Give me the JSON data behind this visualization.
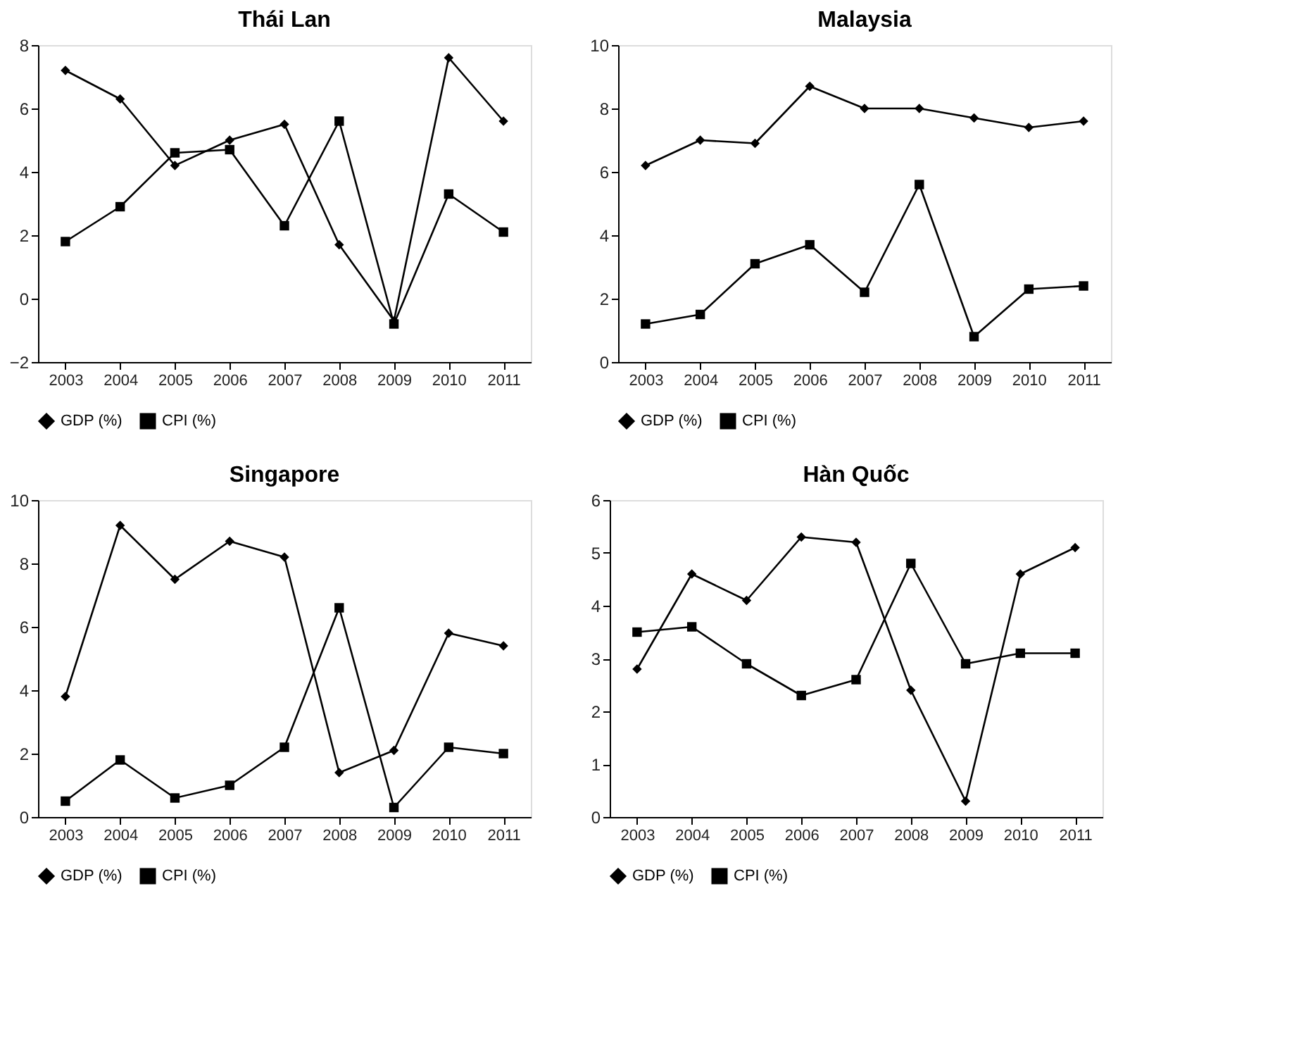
{
  "chart_data": [
    {
      "type": "line",
      "title": "Thái Lan",
      "categories": [
        "2003",
        "2004",
        "2005",
        "2006",
        "2007",
        "2008",
        "2009",
        "2010",
        "2011"
      ],
      "ylim": [
        -2,
        8
      ],
      "yticks": [
        -2,
        0,
        2,
        4,
        6,
        8
      ],
      "grid": false,
      "line_style": "solid",
      "legend": "bottom",
      "series": [
        {
          "name": "GDP (%)",
          "color": "#000000",
          "marker": "diamond",
          "values": [
            7.2,
            6.3,
            4.2,
            5.0,
            5.5,
            1.7,
            -0.7,
            7.6,
            5.6
          ]
        },
        {
          "name": "CPI (%)",
          "color": "#000000",
          "marker": "square",
          "values": [
            1.8,
            2.9,
            4.6,
            4.7,
            2.3,
            5.6,
            -0.8,
            3.3,
            2.1
          ]
        }
      ]
    },
    {
      "type": "line",
      "title": "Malaysia",
      "categories": [
        "2003",
        "2004",
        "2005",
        "2006",
        "2007",
        "2008",
        "2009",
        "2010",
        "2011"
      ],
      "ylim": [
        0,
        10
      ],
      "yticks": [
        0,
        2,
        4,
        6,
        8,
        10
      ],
      "grid": false,
      "line_style": "solid",
      "legend": "bottom",
      "series": [
        {
          "name": "GDP (%)",
          "color": "#000000",
          "marker": "diamond",
          "values": [
            6.2,
            7.0,
            6.9,
            8.7,
            8.0,
            8.0,
            7.7,
            7.4,
            7.6
          ]
        },
        {
          "name": "CPI (%)",
          "color": "#000000",
          "marker": "square",
          "values": [
            1.2,
            1.5,
            3.1,
            3.7,
            2.2,
            5.6,
            0.8,
            2.3,
            2.4
          ]
        }
      ]
    },
    {
      "type": "line",
      "title": "Singapore",
      "categories": [
        "2003",
        "2004",
        "2005",
        "2006",
        "2007",
        "2008",
        "2009",
        "2010",
        "2011"
      ],
      "ylim": [
        0,
        10
      ],
      "yticks": [
        0,
        2,
        4,
        6,
        8,
        10
      ],
      "grid": false,
      "line_style": "solid",
      "legend": "bottom",
      "series": [
        {
          "name": "GDP (%)",
          "color": "#000000",
          "marker": "diamond",
          "values": [
            3.8,
            9.2,
            7.5,
            8.7,
            8.2,
            1.4,
            2.1,
            5.8,
            5.4
          ]
        },
        {
          "name": "CPI (%)",
          "color": "#000000",
          "marker": "square",
          "values": [
            0.5,
            1.8,
            0.6,
            1.0,
            2.2,
            6.6,
            0.3,
            2.2,
            2.0
          ]
        }
      ]
    },
    {
      "type": "line",
      "title": "Hàn Quốc",
      "categories": [
        "2003",
        "2004",
        "2005",
        "2006",
        "2007",
        "2008",
        "2009",
        "2010",
        "2011"
      ],
      "ylim": [
        0,
        6
      ],
      "yticks": [
        0,
        1,
        2,
        3,
        4,
        5,
        6
      ],
      "grid": false,
      "line_style": "solid",
      "legend": "bottom",
      "series": [
        {
          "name": "GDP (%)",
          "color": "#000000",
          "marker": "diamond",
          "values": [
            2.8,
            4.6,
            4.1,
            5.3,
            5.2,
            2.4,
            0.3,
            4.6,
            5.1
          ]
        },
        {
          "name": "CPI (%)",
          "color": "#000000",
          "marker": "square",
          "values": [
            3.5,
            3.6,
            2.9,
            2.3,
            2.6,
            4.8,
            2.9,
            3.1,
            3.1
          ]
        }
      ]
    }
  ]
}
